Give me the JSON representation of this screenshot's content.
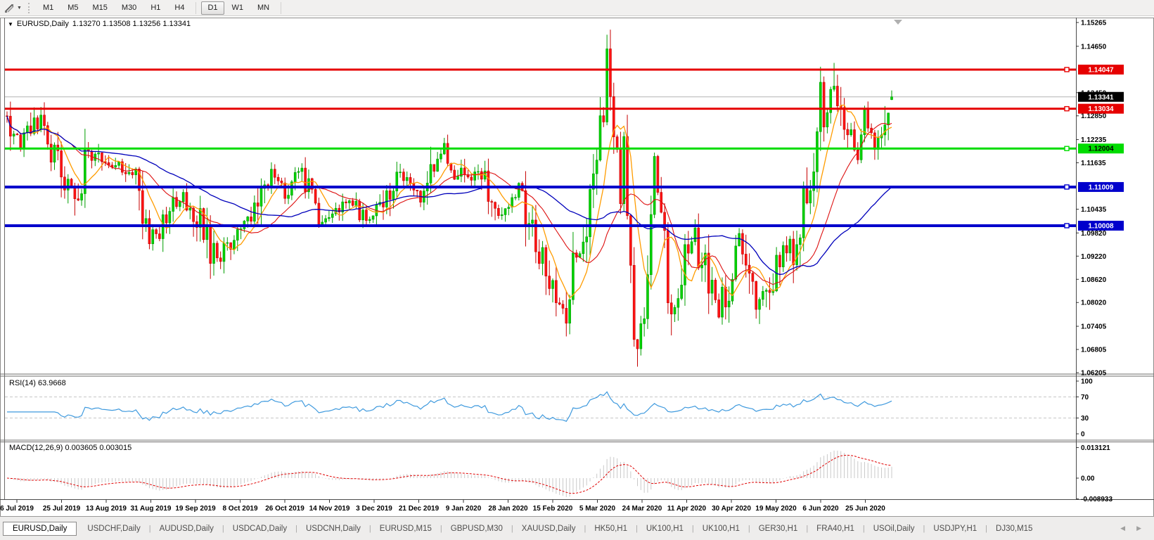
{
  "toolbar": {
    "groups": [
      [
        "M1",
        "M5",
        "M15",
        "M30",
        "H1",
        "H4"
      ],
      [
        "D1",
        "W1",
        "MN"
      ]
    ],
    "active": "D1",
    "cursor_tool": "chart-mode"
  },
  "header": {
    "symbol": "EURUSD,Daily",
    "ohlc": "1.13270 1.13508 1.13256 1.13341"
  },
  "price_axis": {
    "ticks": [
      {
        "label": "1.15265",
        "price": 1.15265
      },
      {
        "label": "1.14650",
        "price": 1.1465
      },
      {
        "label": "1.13450",
        "price": 1.1345
      },
      {
        "label": "1.12850",
        "price": 1.1285
      },
      {
        "label": "1.12235",
        "price": 1.12235
      },
      {
        "label": "1.11635",
        "price": 1.11635
      },
      {
        "label": "1.10435",
        "price": 1.10435
      },
      {
        "label": "1.09820",
        "price": 1.0982
      },
      {
        "label": "1.09220",
        "price": 1.0922
      },
      {
        "label": "1.08620",
        "price": 1.0862
      },
      {
        "label": "1.08020",
        "price": 1.0802
      },
      {
        "label": "1.07405",
        "price": 1.07405
      },
      {
        "label": "1.06805",
        "price": 1.06805
      },
      {
        "label": "1.06205",
        "price": 1.06205
      }
    ]
  },
  "hlines": [
    {
      "label": "1.14047",
      "price": 1.14047,
      "color": "#e60000",
      "thickness": 3,
      "badge_text": "#ffffff"
    },
    {
      "label": "1.13034",
      "price": 1.13034,
      "color": "#e60000",
      "thickness": 3,
      "badge_text": "#ffffff"
    },
    {
      "label": "1.12004",
      "price": 1.12004,
      "color": "#00dc00",
      "thickness": 3,
      "badge_text": "#000000"
    },
    {
      "label": "1.11009",
      "price": 1.11009,
      "color": "#0000cc",
      "thickness": 4,
      "badge_text": "#ffffff"
    },
    {
      "label": "1.10008",
      "price": 1.10008,
      "color": "#0000cc",
      "thickness": 4,
      "badge_text": "#ffffff"
    }
  ],
  "current_price": {
    "label": "1.13341",
    "price": 1.13341,
    "line_color": "#b4b4b4",
    "badge_bg": "#000000",
    "badge_text": "#ffffff"
  },
  "panels": {
    "rsi": {
      "label": "RSI(14) 63.9668",
      "line_color": "#3f9ade",
      "levels": [
        {
          "label": "100",
          "value": 100
        },
        {
          "label": "70",
          "value": 70
        },
        {
          "label": "30",
          "value": 30
        },
        {
          "label": "0",
          "value": 0
        }
      ],
      "dashed_levels": [
        70,
        30
      ]
    },
    "macd": {
      "label": "MACD(12,26,9) 0.003605 0.003015",
      "histogram_color": "#c9c9c9",
      "signal_color": "#e00000",
      "axis": [
        {
          "label": "0.013121",
          "value": 0.013121
        },
        {
          "label": "0.00",
          "value": 0
        },
        {
          "label": "-0.008933",
          "value": -0.008933
        }
      ]
    }
  },
  "x_axis": {
    "dates": [
      "6 Jul 2019",
      "25 Jul 2019",
      "13 Aug 2019",
      "31 Aug 2019",
      "19 Sep 2019",
      "8 Oct 2019",
      "26 Oct 2019",
      "14 Nov 2019",
      "3 Dec 2019",
      "21 Dec 2019",
      "9 Jan 2020",
      "28 Jan 2020",
      "15 Feb 2020",
      "5 Mar 2020",
      "24 Mar 2020",
      "11 Apr 2020",
      "30 Apr 2020",
      "19 May 2020",
      "6 Jun 2020",
      "25 Jun 2020"
    ]
  },
  "tabs": {
    "active_index": 0,
    "items": [
      "EURUSD,Daily",
      "USDCHF,Daily",
      "AUDUSD,Daily",
      "USDCAD,Daily",
      "USDCNH,Daily",
      "EURUSD,M15",
      "GBPUSD,M30",
      "XAUUSD,Daily",
      "HK50,H1",
      "UK100,H1",
      "UK100,H1",
      "GER30,H1",
      "FRA40,H1",
      "USOil,Daily",
      "USDJPY,H1",
      "DJ30,M15"
    ]
  },
  "chart_data": {
    "type": "candlestick",
    "symbol": "EURUSD",
    "timeframe": "Daily",
    "title": "EURUSD,Daily",
    "visible_range": {
      "start": "3 Jul 2019",
      "end": "3 Jul 2020"
    },
    "price_range": [
      1.06205,
      1.15265
    ],
    "num_days": 262,
    "last": {
      "open": 1.1327,
      "high": 1.13508,
      "low": 1.13256,
      "close": 1.13341
    },
    "close_anchors": [
      [
        0,
        1.1285
      ],
      [
        2,
        1.1227
      ],
      [
        4,
        1.1205
      ],
      [
        6,
        1.1253
      ],
      [
        9,
        1.1259
      ],
      [
        11,
        1.1276
      ],
      [
        13,
        1.121
      ],
      [
        16,
        1.1147
      ],
      [
        20,
        1.1075
      ],
      [
        21,
        1.1085
      ],
      [
        24,
        1.12
      ],
      [
        29,
        1.117
      ],
      [
        37,
        1.1145
      ],
      [
        42,
        1.099
      ],
      [
        44,
        1.097
      ],
      [
        47,
        1.1028
      ],
      [
        52,
        1.1073
      ],
      [
        55,
        1.103
      ],
      [
        57,
        1.1017
      ],
      [
        60,
        1.094
      ],
      [
        63,
        1.0899
      ],
      [
        64,
        1.093
      ],
      [
        67,
        1.0979
      ],
      [
        71,
        1.1005
      ],
      [
        74,
        1.1033
      ],
      [
        78,
        1.115
      ],
      [
        82,
        1.108
      ],
      [
        86,
        1.1152
      ],
      [
        89,
        1.1074
      ],
      [
        92,
        1.1018
      ],
      [
        96,
        1.1022
      ],
      [
        101,
        1.106
      ],
      [
        107,
        1.1018
      ],
      [
        112,
        1.106
      ],
      [
        116,
        1.113
      ],
      [
        122,
        1.1078
      ],
      [
        129,
        1.1212
      ],
      [
        130,
        1.1172
      ],
      [
        136,
        1.1122
      ],
      [
        140,
        1.1136
      ],
      [
        146,
        1.1024
      ],
      [
        151,
        1.1093
      ],
      [
        152,
        1.106
      ],
      [
        156,
        1.0945
      ],
      [
        161,
        1.0831
      ],
      [
        165,
        1.0785
      ],
      [
        166,
        1.0846
      ],
      [
        171,
        1.1026
      ],
      [
        172,
        1.1134
      ],
      [
        175,
        1.124
      ],
      [
        176,
        1.1284
      ],
      [
        177,
        1.145
      ],
      [
        179,
        1.127
      ],
      [
        180,
        1.1184
      ],
      [
        181,
        1.1106
      ],
      [
        182,
        1.118
      ],
      [
        183,
        1.0995
      ],
      [
        184,
        1.0915
      ],
      [
        185,
        1.069
      ],
      [
        186,
        1.0685
      ],
      [
        187,
        1.0725
      ],
      [
        188,
        1.0789
      ],
      [
        189,
        1.088
      ],
      [
        190,
        1.103
      ],
      [
        191,
        1.114
      ],
      [
        193,
        1.103
      ],
      [
        194,
        1.0957
      ],
      [
        195,
        1.0855
      ],
      [
        197,
        1.079
      ],
      [
        200,
        1.093
      ],
      [
        203,
        1.098
      ],
      [
        204,
        1.091
      ],
      [
        207,
        1.0863
      ],
      [
        210,
        1.0775
      ],
      [
        211,
        1.082
      ],
      [
        214,
        1.0875
      ],
      [
        215,
        1.0955
      ],
      [
        216,
        1.098
      ],
      [
        220,
        1.0834
      ],
      [
        225,
        1.08
      ],
      [
        227,
        1.0915
      ],
      [
        230,
        1.0949
      ],
      [
        232,
        1.0899
      ],
      [
        233,
        1.0982
      ],
      [
        236,
        1.1101
      ],
      [
        237,
        1.1135
      ],
      [
        239,
        1.1234
      ],
      [
        240,
        1.1337
      ],
      [
        241,
        1.129
      ],
      [
        244,
        1.1375
      ],
      [
        245,
        1.1297
      ],
      [
        248,
        1.1264
      ],
      [
        251,
        1.1177
      ],
      [
        253,
        1.1307
      ],
      [
        254,
        1.1251
      ],
      [
        256,
        1.1219
      ],
      [
        258,
        1.1234
      ],
      [
        259,
        1.125
      ],
      [
        260,
        1.13
      ],
      [
        261,
        1.13341
      ]
    ],
    "spikes": [
      {
        "day": 177,
        "high": 1.1495
      },
      {
        "day": 244,
        "high": 1.1422
      },
      {
        "day": 64,
        "low": 1.0885
      },
      {
        "day": 186,
        "low": 1.0636
      },
      {
        "day": 20,
        "low": 1.1027
      },
      {
        "day": 165,
        "low": 1.0778
      }
    ],
    "style": {
      "candle_up": {
        "fill": "#00d300",
        "stroke": "#009e00"
      },
      "candle_down": {
        "fill": "#ff1414",
        "stroke": "#c60000"
      }
    },
    "moving_averages": [
      {
        "period": 8,
        "color": "#ff9c00",
        "width": 1.3
      },
      {
        "period": 20,
        "color": "#dd1010",
        "width": 1.1
      },
      {
        "period": 45,
        "color": "#0000bb",
        "width": 1.3
      }
    ],
    "horizontal_levels": [
      1.14047,
      1.13034,
      1.12004,
      1.11009,
      1.10008
    ],
    "indicators": {
      "rsi": {
        "period": 14,
        "current": 63.9668,
        "scale": [
          0,
          100
        ]
      },
      "macd": {
        "fast": 12,
        "slow": 26,
        "signal": 9,
        "current_main": 0.003605,
        "current_signal": 0.003015,
        "scale": [
          -0.008933,
          0.013121
        ]
      }
    }
  }
}
